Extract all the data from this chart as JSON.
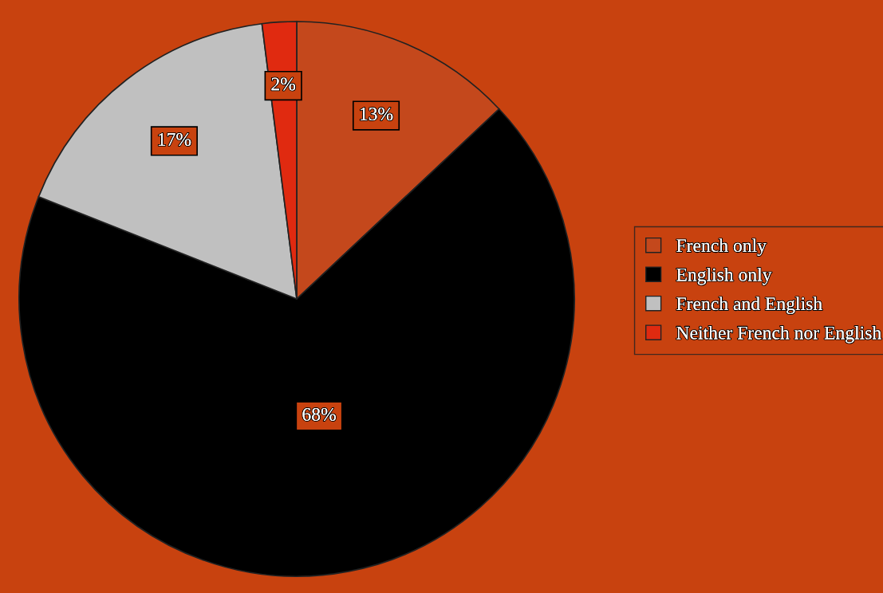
{
  "chart_data": {
    "type": "pie",
    "categories": [
      "French only",
      "English only",
      "French and English",
      "Neither French nor English"
    ],
    "values": [
      13,
      68,
      17,
      2
    ],
    "colors": [
      "#c4481c",
      "#000000",
      "#c0c0c0",
      "#e02a10"
    ],
    "value_labels": [
      "13%",
      "68%",
      "17%",
      "2%"
    ],
    "legend": "right"
  }
}
